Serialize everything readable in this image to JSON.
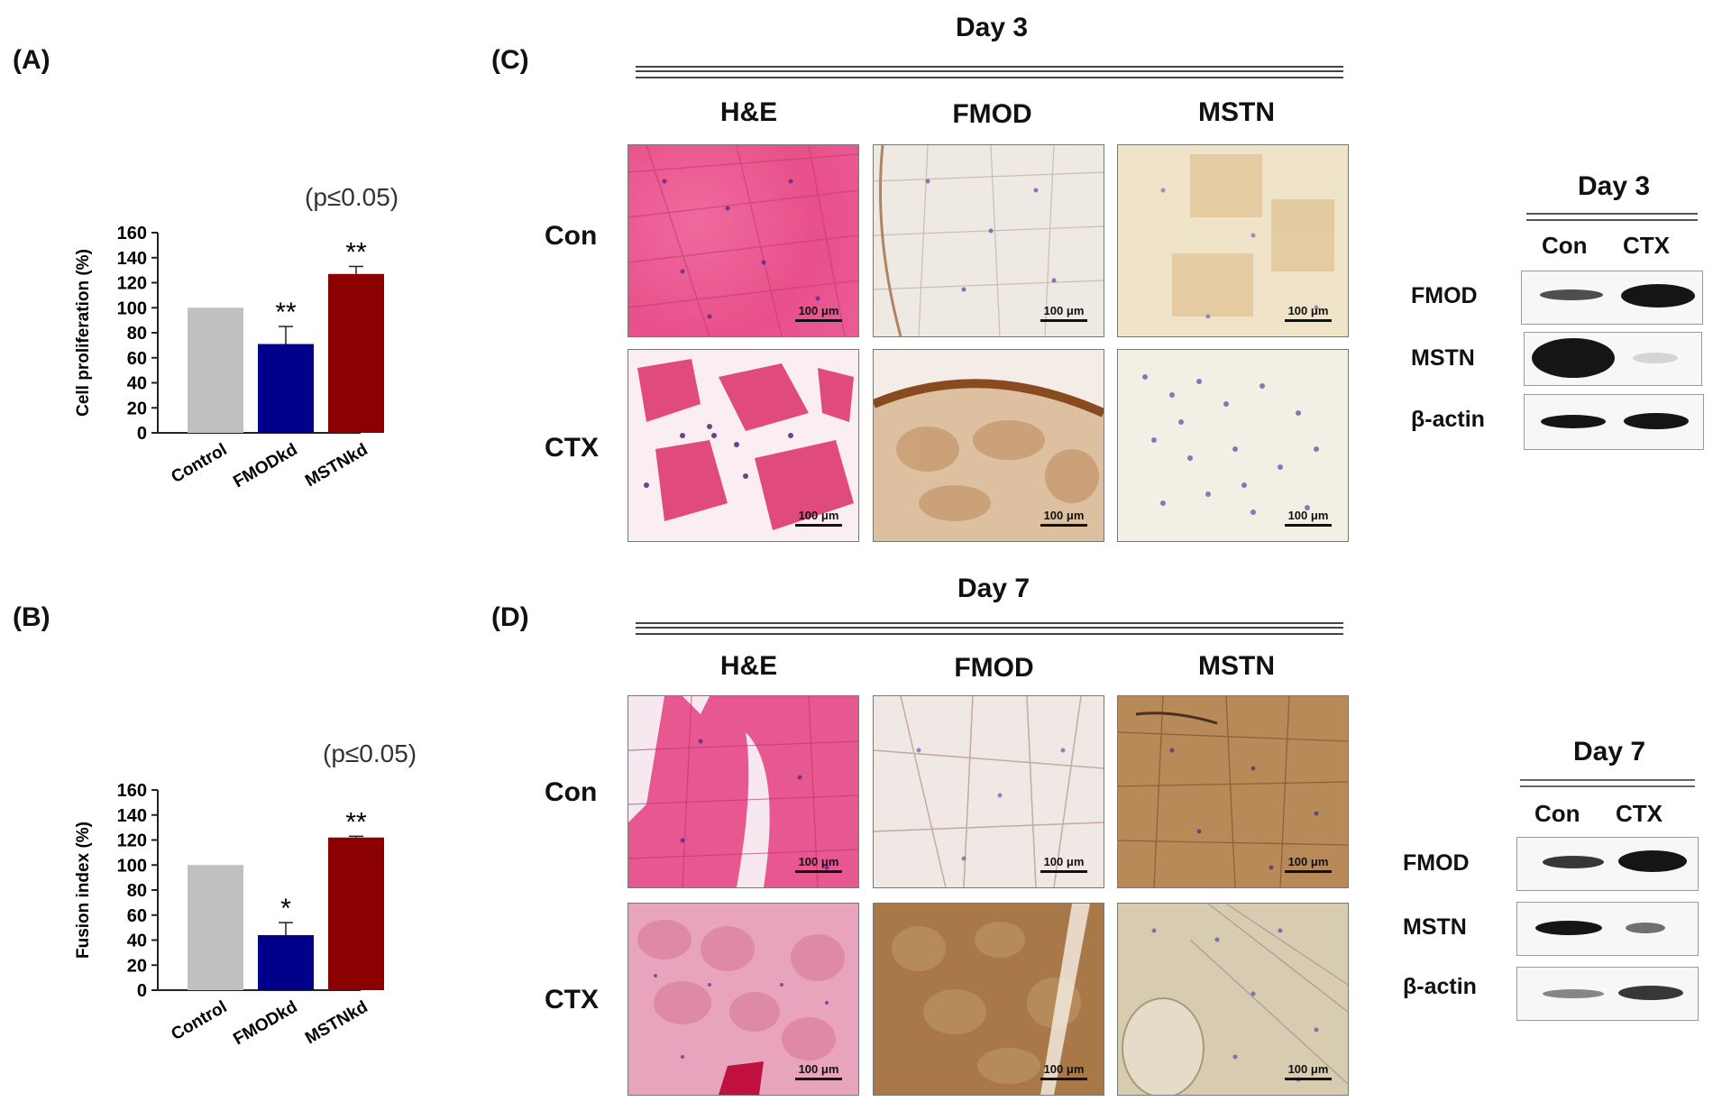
{
  "panels": {
    "A": {
      "label": "(A)",
      "pvalue": "(p≤0.05)"
    },
    "B": {
      "label": "(B)",
      "pvalue": "(p≤0.05)"
    },
    "C": {
      "label": "(C)",
      "day": "Day 3"
    },
    "D": {
      "label": "(D)",
      "day": "Day 7"
    }
  },
  "histology": {
    "columns": [
      "H&E",
      "FMOD",
      "MSTN"
    ],
    "rows": [
      "Con",
      "CTX"
    ],
    "scale_label": "100 μm"
  },
  "western": {
    "day3": {
      "title": "Day 3",
      "lanes": [
        "Con",
        "CTX"
      ],
      "rows": [
        "FMOD",
        "MSTN",
        "β-actin"
      ]
    },
    "day7": {
      "title": "Day 7",
      "lanes": [
        "Con",
        "CTX"
      ],
      "rows": [
        "FMOD",
        "MSTN",
        "β-actin"
      ]
    }
  },
  "colors": {
    "control": "#c0c0c0",
    "fmodkd": "#00008b",
    "mstnkd": "#8b0000"
  },
  "chart_data": [
    {
      "type": "bar",
      "categories": [
        "Control",
        "FMODkd",
        "MSTNkd"
      ],
      "values": [
        100,
        71,
        127
      ],
      "errors": [
        0,
        14,
        6
      ],
      "significance": [
        "",
        "**",
        "**"
      ],
      "ylabel": "Cell proliferation (%)",
      "ylim": [
        0,
        160
      ],
      "yticks": [
        0,
        20,
        40,
        60,
        80,
        100,
        120,
        140,
        160
      ]
    },
    {
      "type": "bar",
      "categories": [
        "Control",
        "FMODkd",
        "MSTNkd"
      ],
      "values": [
        100,
        44,
        122
      ],
      "errors": [
        0,
        10,
        1
      ],
      "significance": [
        "",
        "*",
        "**"
      ],
      "ylabel": "Fusion index (%)",
      "ylim": [
        0,
        160
      ],
      "yticks": [
        0,
        20,
        40,
        60,
        80,
        100,
        120,
        140,
        160
      ]
    }
  ]
}
